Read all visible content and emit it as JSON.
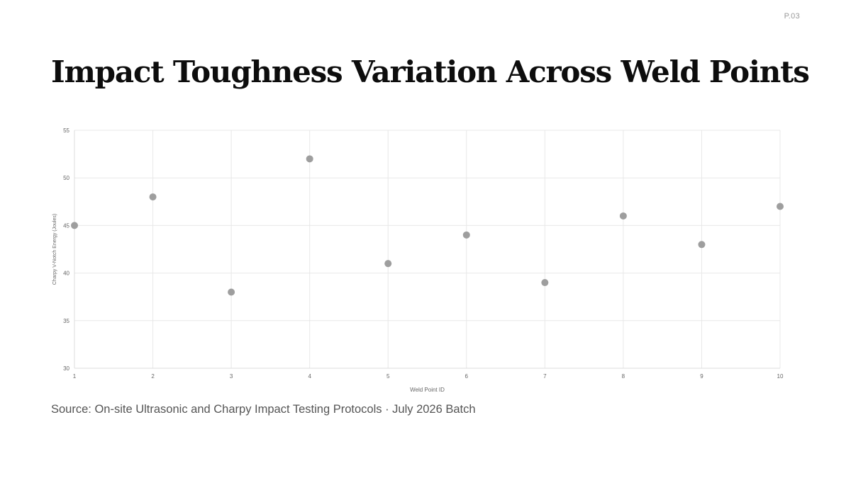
{
  "page": {
    "number": "P.03",
    "title": "Impact Toughness Variation Across Weld Points",
    "source": "Source: On-site Ultrasonic and Charpy Impact Testing Protocols · July 2026 Batch"
  },
  "chart_data": {
    "type": "scatter",
    "title": "",
    "xlabel": "Weld Point ID",
    "ylabel": "Charpy V-Notch Energy (Joules)",
    "x": [
      1,
      2,
      3,
      4,
      5,
      6,
      7,
      8,
      9,
      10
    ],
    "y": [
      45,
      48,
      38,
      52,
      41,
      44,
      39,
      46,
      43,
      47
    ],
    "xlim": [
      1,
      10
    ],
    "ylim": [
      30,
      55
    ],
    "xticks": [
      "1",
      "2",
      "3",
      "4",
      "5",
      "6",
      "7",
      "8",
      "9",
      "10"
    ],
    "yticks": [
      "30",
      "35",
      "40",
      "45",
      "50",
      "55"
    ],
    "grid": true,
    "legend": "none",
    "point_color": "#9e9e9e",
    "grid_color": "#e8e8e8"
  }
}
